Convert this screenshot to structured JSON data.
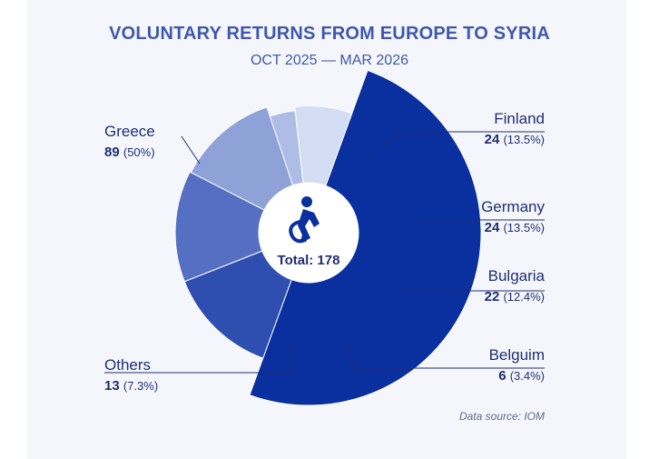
{
  "colors": {
    "greece": "#0a2f9e",
    "finland": "#2e4fb0",
    "germany": "#5570c2",
    "bulgaria": "#8ea2d8",
    "belgium": "#aebde6",
    "others": "#d3ddf3",
    "text": "#1f2e73",
    "title": "#3f58ad"
  },
  "center_icon": "person-returning-icon",
  "chart_data": {
    "type": "pie",
    "variant": "polar-donut",
    "title": "VOLUNTARY RETURNS FROM EUROPE TO SYRIA",
    "subtitle": "OCT 2025 — MAR 2026",
    "total_label": "Total: 178",
    "total": 178,
    "source": "Data source: IOM",
    "slices": [
      {
        "label": "Greece",
        "value": 89,
        "value_text": "89",
        "pct_text": "(50%)",
        "color": "#0a2f9e"
      },
      {
        "label": "Finland",
        "value": 24,
        "value_text": "24",
        "pct_text": "(13.5%)",
        "color": "#2e4fb0"
      },
      {
        "label": "Germany",
        "value": 24,
        "value_text": "24",
        "pct_text": "(13.5%)",
        "color": "#5570c2"
      },
      {
        "label": "Bulgaria",
        "value": 22,
        "value_text": "22",
        "pct_text": "(12.4%)",
        "color": "#8ea2d8"
      },
      {
        "label": "Belguim",
        "value": 6,
        "value_text": "6",
        "pct_text": "(3.4%)",
        "color": "#aebde6"
      },
      {
        "label": "Others",
        "value": 13,
        "value_text": "13",
        "pct_text": "(7.3%)",
        "color": "#d3ddf3"
      }
    ]
  }
}
